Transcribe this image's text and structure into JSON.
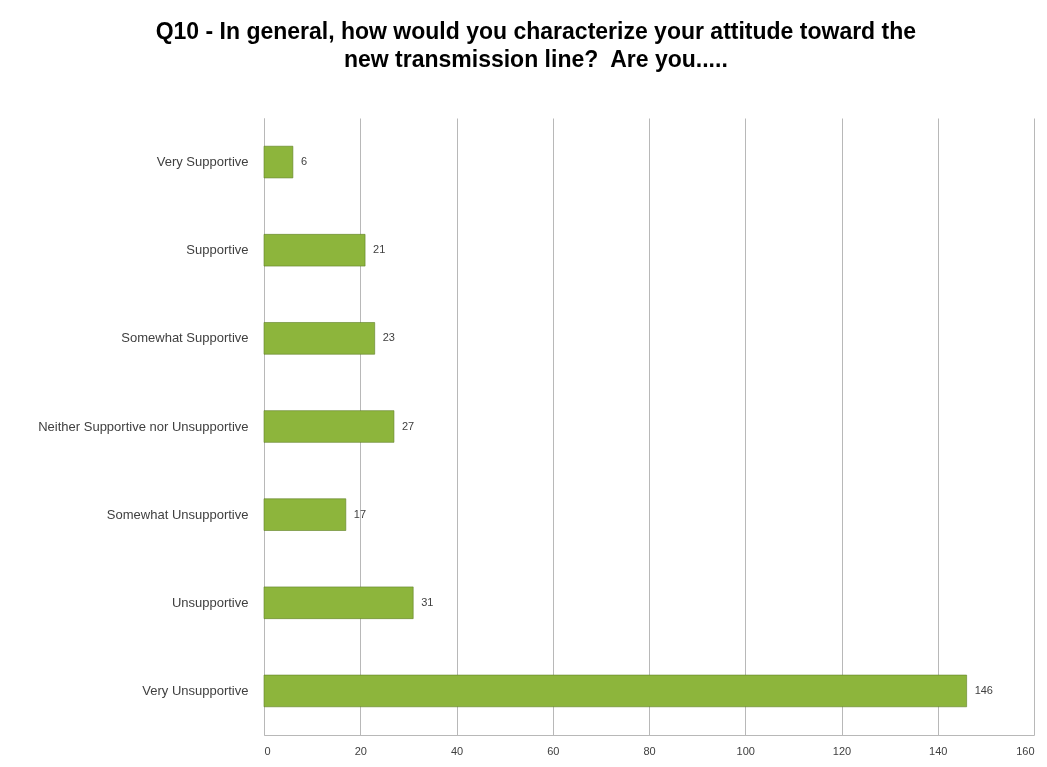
{
  "chart_data": {
    "type": "bar",
    "orientation": "horizontal",
    "title": "Q10 - In general, how would you characterize your attitude toward the new transmission line?  Are you.....",
    "categories": [
      "Very Supportive",
      "Supportive",
      "Somewhat Supportive",
      "Neither Supportive nor Unsupportive",
      "Somewhat Unsupportive",
      "Unsupportive",
      "Very Unsupportive"
    ],
    "values": [
      6,
      21,
      23,
      27,
      17,
      31,
      146
    ],
    "color": "#8db53c",
    "xlim": [
      0,
      160
    ],
    "xticks": [
      0,
      20,
      40,
      60,
      80,
      100,
      120,
      140,
      160
    ],
    "grid": "x",
    "data_labels": true
  }
}
